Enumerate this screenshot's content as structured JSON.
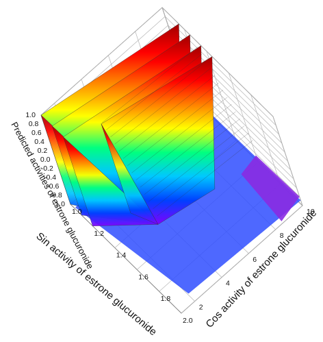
{
  "chart_data": {
    "type": "surface3d",
    "title": "",
    "xlabel": "Sin activity of estrone glucuronide",
    "ylabel": "Cos activity of estrone glucuronide",
    "zlabel": "Predicted activities of estrone glucuronide",
    "xlim": [
      1.0,
      2.0
    ],
    "ylim": [
      1,
      10
    ],
    "zlim": [
      -1.0,
      1.0
    ],
    "x_ticks": [
      "1.0",
      "1.2",
      "1.4",
      "1.6",
      "1.8",
      "2.0"
    ],
    "y_ticks": [
      "2",
      "4",
      "6",
      "8",
      "10"
    ],
    "z_ticks": [
      "-1.0",
      "-0.8",
      "-0.6",
      "-0.4",
      "-0.2",
      "0.0",
      "0.2",
      "0.4",
      "0.6",
      "0.8",
      "1.0"
    ],
    "colormap": [
      "#8000ff",
      "#0040ff",
      "#00c8ff",
      "#00ff80",
      "#ffff00",
      "#ff8000",
      "#ff0000",
      "#a00000"
    ],
    "ridges": [
      {
        "x": 1.0,
        "y_start": 1,
        "y_end": 10,
        "z_top": 1.0,
        "z_base": -1.0
      },
      {
        "x": 1.1,
        "y_start": 1,
        "y_end": 10,
        "z_top": 1.0,
        "z_base": -1.0
      },
      {
        "x": 1.2,
        "y_start": 1,
        "y_end": 10,
        "z_top": 1.0,
        "z_base": -1.0
      },
      {
        "x": 1.3,
        "y_start": 3,
        "y_end": 10,
        "z_top": 1.0,
        "z_base": -1.0
      }
    ],
    "grid": true
  }
}
